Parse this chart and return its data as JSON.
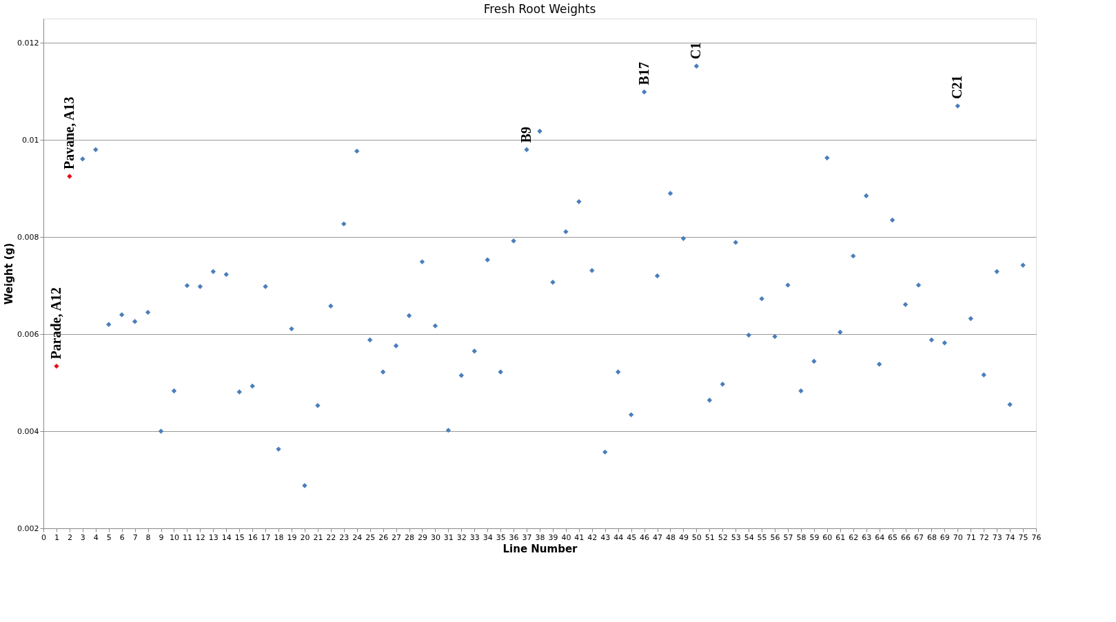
{
  "chart_data": {
    "type": "scatter",
    "title": "Fresh Root Weights",
    "xlabel": "Line Number",
    "ylabel": "Weight (g)",
    "xlim": [
      0,
      76
    ],
    "xticks": [
      0,
      1,
      2,
      3,
      4,
      5,
      6,
      7,
      8,
      9,
      10,
      11,
      12,
      13,
      14,
      15,
      16,
      17,
      18,
      19,
      20,
      21,
      22,
      23,
      24,
      25,
      26,
      27,
      28,
      29,
      30,
      31,
      32,
      33,
      34,
      35,
      36,
      37,
      38,
      39,
      40,
      41,
      42,
      43,
      44,
      45,
      46,
      47,
      48,
      49,
      50,
      51,
      52,
      53,
      54,
      55,
      56,
      57,
      58,
      59,
      60,
      61,
      62,
      63,
      64,
      65,
      66,
      67,
      68,
      69,
      70,
      71,
      72,
      73,
      74,
      75,
      76
    ],
    "ylim": [
      0.002,
      0.0125
    ],
    "yticks": [
      0.002,
      0.004,
      0.006,
      0.008,
      0.01,
      0.012
    ],
    "grid": "y",
    "marker": "diamond",
    "series": [
      {
        "color": "#e8101a",
        "x": [
          1,
          2
        ],
        "values": [
          0.00534,
          0.00925
        ]
      },
      {
        "color": "#4a7ebb",
        "x": [
          3,
          4,
          5,
          6,
          7,
          8,
          9,
          10,
          11,
          12,
          13,
          14,
          15,
          16,
          17,
          18,
          19,
          20,
          21,
          22,
          23,
          24,
          25,
          26,
          27,
          28,
          29,
          30,
          31,
          32,
          33,
          34,
          35,
          36,
          37,
          38,
          39,
          40,
          41,
          42,
          43,
          44,
          45,
          46,
          47,
          48,
          49,
          50,
          51,
          52,
          53,
          54,
          55,
          56,
          57,
          58,
          59,
          60,
          61,
          62,
          63,
          64,
          65,
          66,
          67,
          68,
          69,
          70,
          71,
          72,
          73,
          74,
          75
        ],
        "values": [
          0.00961,
          0.0098,
          0.0062,
          0.0064,
          0.00626,
          0.00645,
          0.004,
          0.00483,
          0.007,
          0.00698,
          0.00729,
          0.00723,
          0.00481,
          0.00493,
          0.00698,
          0.00363,
          0.00611,
          0.00288,
          0.00453,
          0.00658,
          0.00827,
          0.00977,
          0.00588,
          0.00522,
          0.00576,
          0.00638,
          0.00749,
          0.00617,
          0.00402,
          0.00515,
          0.00565,
          0.00753,
          0.00522,
          0.00792,
          0.0098,
          0.01018,
          0.00707,
          0.00811,
          0.00873,
          0.00731,
          0.00357,
          0.00522,
          0.00434,
          0.01099,
          0.0072,
          0.0089,
          0.00797,
          0.01152,
          0.00464,
          0.00497,
          0.00789,
          0.00598,
          0.00673,
          0.00595,
          0.00701,
          0.00483,
          0.00544,
          0.00963,
          0.00604,
          0.00761,
          0.00885,
          0.00538,
          0.00835,
          0.00661,
          0.00701,
          0.00588,
          0.00582,
          0.0107,
          0.00632,
          0.00516,
          0.00729,
          0.00455,
          0.00742
        ]
      }
    ],
    "annotations": [
      {
        "text": "Parade, A12",
        "x": 1,
        "y": 0.00534
      },
      {
        "text": "Pavane, A13",
        "x": 2,
        "y": 0.00925
      },
      {
        "text": "B9",
        "x": 37,
        "y": 0.0098
      },
      {
        "text": "B17",
        "x": 46,
        "y": 0.01099
      },
      {
        "text": "C1",
        "x": 50,
        "y": 0.01152
      },
      {
        "text": "C21",
        "x": 70,
        "y": 0.0107
      }
    ]
  }
}
